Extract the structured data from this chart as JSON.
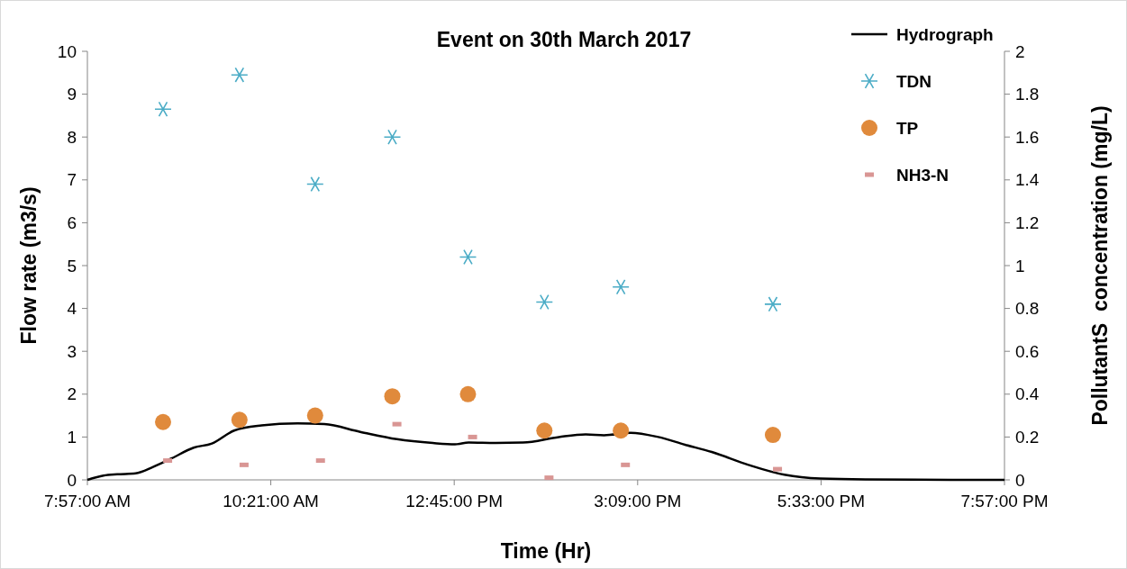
{
  "chart_data": {
    "type": "scatter",
    "title": "Event on 30th March 2017",
    "xlabel": "Time (Hr)",
    "ylabel": "Flow rate (m3/s)",
    "y2label": "PollutantS  concentration (mg/L)",
    "xlim": [
      7.95,
      19.95
    ],
    "xticks": [
      {
        "value": 7.95,
        "label": "7:57:00 AM"
      },
      {
        "value": 10.35,
        "label": "10:21:00 AM"
      },
      {
        "value": 12.75,
        "label": "12:45:00 PM"
      },
      {
        "value": 15.15,
        "label": "3:09:00 PM"
      },
      {
        "value": 17.55,
        "label": "5:33:00 PM"
      },
      {
        "value": 19.95,
        "label": "7:57:00 PM"
      }
    ],
    "ylim": [
      0,
      10
    ],
    "yticks": [
      0,
      1,
      2,
      3,
      4,
      5,
      6,
      7,
      8,
      9,
      10
    ],
    "y2lim": [
      0,
      2
    ],
    "y2ticks": [
      0,
      0.2,
      0.4,
      0.6,
      0.8,
      1,
      1.2,
      1.4,
      1.6,
      1.8,
      2
    ],
    "grid": false,
    "legend": "top right",
    "series": [
      {
        "name": "Hydrograph",
        "type": "line",
        "color": "#000000",
        "marker": "none",
        "line_style": "solid",
        "x": [
          7.95,
          8.16,
          8.34,
          8.58,
          8.81,
          9.05,
          9.34,
          9.58,
          9.87,
          10.23,
          10.7,
          11.05,
          11.52,
          12.0,
          12.47,
          12.76,
          12.94,
          13.29,
          13.65,
          14.12,
          14.47,
          14.71,
          15.06,
          15.42,
          15.77,
          16.12,
          16.6,
          17.07,
          17.54,
          18.13,
          19.95
        ],
        "values": [
          0,
          0.1,
          0.13,
          0.15,
          0.3,
          0.5,
          0.75,
          0.85,
          1.15,
          1.27,
          1.32,
          1.3,
          1.12,
          0.95,
          0.86,
          0.83,
          0.87,
          0.86,
          0.87,
          1.0,
          1.06,
          1.04,
          1.1,
          1.0,
          0.82,
          0.65,
          0.35,
          0.12,
          0.03,
          0.01,
          0
        ]
      },
      {
        "name": "TDN",
        "axis": "y2",
        "color": "#4bacc6",
        "marker": "cross",
        "x": [
          8.94,
          9.94,
          10.93,
          11.94,
          12.93,
          13.93,
          14.93,
          16.92
        ],
        "values": [
          1.73,
          1.89,
          1.38,
          1.6,
          1.04,
          0.83,
          0.9,
          0.82
        ]
      },
      {
        "name": "TP",
        "axis": "y2",
        "color": "#e08a3c",
        "marker": "circle",
        "x": [
          8.94,
          9.94,
          10.93,
          11.94,
          12.93,
          13.93,
          14.93,
          16.92
        ],
        "values": [
          0.27,
          0.28,
          0.3,
          0.39,
          0.4,
          0.23,
          0.23,
          0.21
        ]
      },
      {
        "name": "NH3-N",
        "axis": "y2",
        "color": "#d99694",
        "marker": "square",
        "x": [
          9.0,
          10.0,
          11.0,
          12.0,
          12.99,
          13.99,
          14.99,
          16.98
        ],
        "values": [
          0.09,
          0.07,
          0.09,
          0.26,
          0.2,
          0.01,
          0.07,
          0.05
        ]
      }
    ]
  }
}
